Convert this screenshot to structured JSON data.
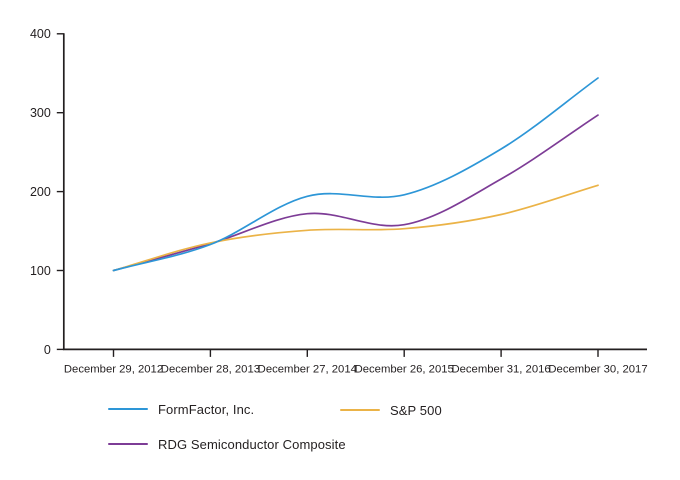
{
  "chart_data": {
    "type": "line",
    "title": "",
    "categories": [
      "December 29, 2012",
      "December 28, 2013",
      "December 27, 2014",
      "December 26, 2015",
      "December 31, 2016",
      "December 30, 2017"
    ],
    "series": [
      {
        "name": "FormFactor, Inc.",
        "color": "#2D96D7",
        "values": [
          100,
          133,
          194,
          196,
          254,
          344
        ]
      },
      {
        "name": "S&P 500",
        "color": "#EBB347",
        "values": [
          100,
          135,
          151,
          153,
          171,
          208
        ]
      },
      {
        "name": "RDG Semiconductor Composite",
        "color": "#7D3C96",
        "values": [
          100,
          134,
          172,
          158,
          216,
          297
        ]
      }
    ],
    "ylim": [
      0,
      400
    ],
    "y_ticks": [
      0,
      100,
      200,
      300,
      400
    ],
    "xlabel": "",
    "ylabel": "",
    "grid": false,
    "smooth": true,
    "legend_position": "bottom",
    "axis_color": "#231F20",
    "text_color": "#231F20"
  },
  "legend": {
    "items": [
      {
        "label": "FormFactor, Inc."
      },
      {
        "label": "S&P 500"
      },
      {
        "label": "RDG Semiconductor Composite"
      }
    ]
  }
}
